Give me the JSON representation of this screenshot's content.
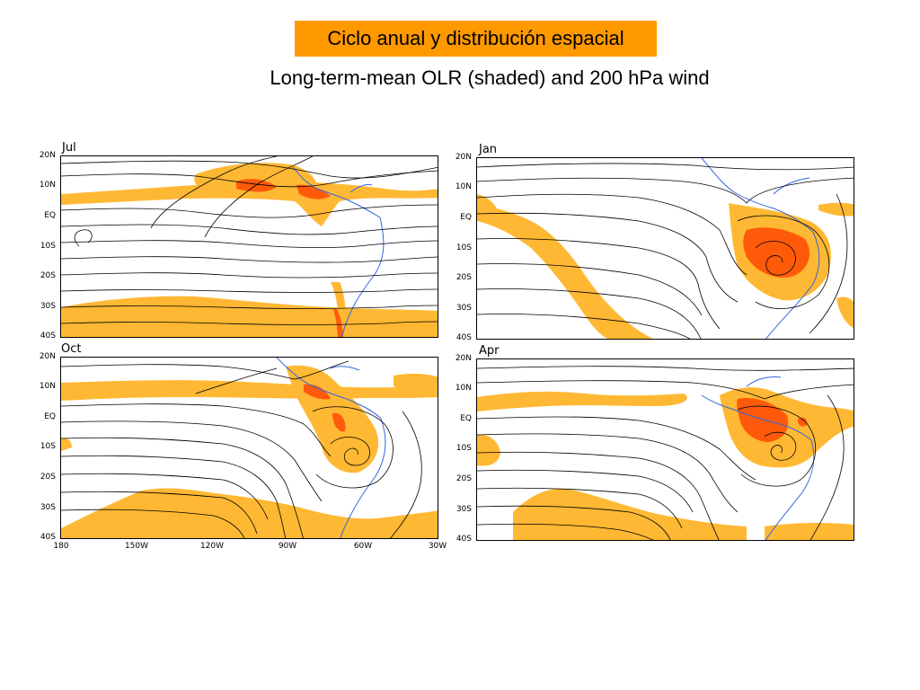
{
  "title": "Ciclo anual y distribución espacial",
  "subtitle": "Long-term-mean OLR (shaded) and 200 hPa wind",
  "lat_ticks": [
    "20N",
    "10N",
    "EQ",
    "10S",
    "20S",
    "30S",
    "40S"
  ],
  "lon_ticks": [
    "180",
    "150W",
    "120W",
    "90W",
    "60W",
    "30W"
  ],
  "panels": {
    "jul": {
      "label": "Jul"
    },
    "jan": {
      "label": "Jan"
    },
    "oct": {
      "label": "Oct"
    },
    "apr": {
      "label": "Apr"
    }
  },
  "colors": {
    "shade_light": "#ffb833",
    "shade_dark": "#ff5a0a",
    "coast": "#3366dd",
    "streamline": "#000000",
    "title_box": "#ff9900"
  }
}
